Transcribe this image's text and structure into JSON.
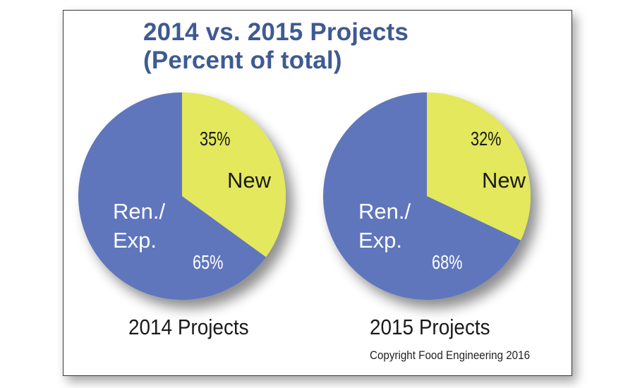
{
  "chart_data": [
    {
      "type": "pie",
      "title": "2014 vs. 2015 Projects (Percent of total)",
      "caption": "2014 Projects",
      "slices": [
        {
          "label": "New",
          "value": 35,
          "display": "35%",
          "color": "#e3e85c",
          "text_color": "#1a1a1a"
        },
        {
          "label": "Ren./ Exp.",
          "value": 65,
          "display": "65%",
          "color": "#5f76bd",
          "text_color": "#ffffff"
        }
      ]
    },
    {
      "type": "pie",
      "title": "2014 vs. 2015 Projects (Percent of total)",
      "caption": "2015 Projects",
      "slices": [
        {
          "label": "New",
          "value": 32,
          "display": "32%",
          "color": "#e3e85c",
          "text_color": "#1a1a1a"
        },
        {
          "label": "Ren./ Exp.",
          "value": 68,
          "display": "68%",
          "color": "#5f76bd",
          "text_color": "#ffffff"
        }
      ]
    }
  ],
  "title": {
    "line1": "2014 vs. 2015 Projects",
    "line2": "(Percent of total)"
  },
  "labels": {
    "new": "New",
    "ren_line1": "Ren./",
    "ren_line2": "Exp."
  },
  "captions": [
    "2014 Projects",
    "2015 Projects"
  ],
  "copyright": "Copyright Food Engineering 2016",
  "colors": {
    "title": "#3e5a92",
    "new": "#e3e85c",
    "renovation": "#5f76bd"
  }
}
